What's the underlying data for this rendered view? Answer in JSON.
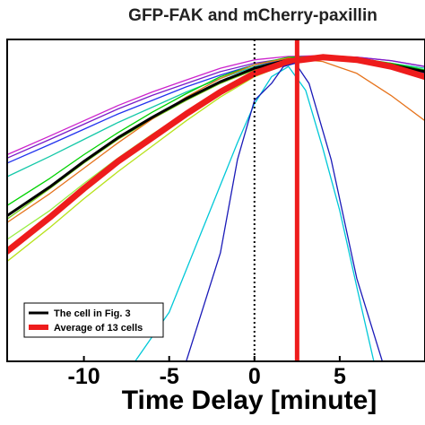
{
  "chart_data": {
    "type": "line",
    "title": "GFP-FAK and mCherry-paxillin",
    "xlabel": "Time Delay [minute]",
    "ylabel": "",
    "xlim": [
      -14.5,
      10
    ],
    "ylim": [
      -0.84,
      1.06
    ],
    "x_ticks": [
      -10,
      -5,
      0,
      5
    ],
    "x_tick_labels": [
      "-10",
      "-5",
      "0",
      "5"
    ],
    "grid": false,
    "legend_position": "bottom-left",
    "reference_lines": [
      {
        "x": 0,
        "style": "dotted",
        "color": "#000000"
      },
      {
        "x": 2.5,
        "style": "solid",
        "color": "#ee1c1c"
      }
    ],
    "series": [
      {
        "color": "#cc22cc",
        "width": 1.3,
        "x": [
          -14.5,
          -12,
          -10,
          -8,
          -6,
          -4,
          -2,
          0,
          2,
          4,
          6,
          8,
          10
        ],
        "y": [
          0.38,
          0.49,
          0.58,
          0.67,
          0.75,
          0.82,
          0.89,
          0.94,
          0.96,
          0.965,
          0.955,
          0.935,
          0.9
        ]
      },
      {
        "color": "#7a1cc8",
        "width": 1.3,
        "x": [
          -14.5,
          -12,
          -10,
          -8,
          -6,
          -4,
          -2,
          0,
          2,
          4,
          6,
          8,
          10
        ],
        "y": [
          0.36,
          0.47,
          0.56,
          0.65,
          0.73,
          0.8,
          0.87,
          0.92,
          0.95,
          0.96,
          0.955,
          0.935,
          0.9
        ]
      },
      {
        "color": "#2233ee",
        "width": 1.3,
        "x": [
          -14.5,
          -12,
          -10,
          -8,
          -6,
          -4,
          -2,
          0,
          2,
          4,
          6,
          8,
          10
        ],
        "y": [
          0.33,
          0.44,
          0.53,
          0.62,
          0.7,
          0.78,
          0.85,
          0.91,
          0.94,
          0.945,
          0.93,
          0.9,
          0.86
        ]
      },
      {
        "color": "#14c8a8",
        "width": 1.3,
        "x": [
          -14.5,
          -12,
          -10,
          -8,
          -6,
          -4,
          -2,
          0,
          2,
          4,
          6,
          8,
          10
        ],
        "y": [
          0.25,
          0.37,
          0.47,
          0.57,
          0.66,
          0.75,
          0.83,
          0.9,
          0.94,
          0.95,
          0.94,
          0.92,
          0.89
        ]
      },
      {
        "color": "#00d200",
        "width": 1.3,
        "x": [
          -14.5,
          -12,
          -10,
          -8,
          -6,
          -4,
          -2,
          0,
          2,
          4,
          6,
          8,
          10
        ],
        "y": [
          0.08,
          0.24,
          0.38,
          0.51,
          0.63,
          0.74,
          0.84,
          0.91,
          0.955,
          0.96,
          0.95,
          0.92,
          0.88
        ]
      },
      {
        "color": "#7ad21c",
        "width": 1.3,
        "x": [
          -14.5,
          -12,
          -10,
          -8,
          -6,
          -4,
          -2,
          0,
          2,
          4,
          6,
          8,
          10
        ],
        "y": [
          0.0,
          0.18,
          0.33,
          0.47,
          0.59,
          0.7,
          0.8,
          0.88,
          0.93,
          0.945,
          0.93,
          0.9,
          0.85
        ]
      },
      {
        "color": "#b8e21c",
        "width": 1.3,
        "x": [
          -14.5,
          -12,
          -10,
          -8,
          -6,
          -4,
          -2,
          0,
          2,
          4,
          6,
          8,
          10
        ],
        "y": [
          -0.25,
          -0.05,
          0.12,
          0.28,
          0.43,
          0.58,
          0.72,
          0.84,
          0.92,
          0.945,
          0.93,
          0.89,
          0.83
        ]
      },
      {
        "color": "#9aee44",
        "width": 1.3,
        "x": [
          -14.5,
          -12,
          -10,
          -8,
          -6,
          -4,
          -2,
          0,
          2,
          4,
          6,
          8,
          10
        ],
        "y": [
          -0.12,
          0.05,
          0.21,
          0.36,
          0.5,
          0.63,
          0.75,
          0.86,
          0.93,
          0.95,
          0.94,
          0.9,
          0.85
        ]
      },
      {
        "color": "#e6731c",
        "width": 1.3,
        "x": [
          -14.5,
          -12,
          -10,
          -8,
          -6,
          -4,
          -2,
          0,
          2,
          4,
          6,
          8,
          10
        ],
        "y": [
          -0.02,
          0.15,
          0.3,
          0.45,
          0.59,
          0.72,
          0.83,
          0.91,
          0.95,
          0.93,
          0.86,
          0.73,
          0.58
        ]
      },
      {
        "color": "#000000",
        "width": 3,
        "x": [
          -14.5,
          -12,
          -10,
          -8,
          -6,
          -4,
          -2,
          0,
          2,
          4,
          6,
          8,
          10
        ],
        "y": [
          0.02,
          0.19,
          0.34,
          0.48,
          0.6,
          0.71,
          0.81,
          0.89,
          0.94,
          0.955,
          0.94,
          0.91,
          0.87
        ]
      },
      {
        "color": "#ee1c1c",
        "width": 7,
        "x": [
          -14.5,
          -12,
          -10,
          -8,
          -6,
          -4,
          -2,
          0,
          2,
          4,
          6,
          8,
          10
        ],
        "y": [
          -0.19,
          0.01,
          0.18,
          0.34,
          0.48,
          0.62,
          0.75,
          0.86,
          0.93,
          0.955,
          0.94,
          0.9,
          0.84
        ]
      },
      {
        "color": "#00c8d8",
        "width": 1.3,
        "x": [
          -7,
          -5,
          -3,
          -1,
          0,
          1,
          2,
          3,
          4,
          5,
          6,
          7
        ],
        "y": [
          -0.84,
          -0.55,
          -0.05,
          0.45,
          0.68,
          0.84,
          0.9,
          0.76,
          0.42,
          0.05,
          -0.4,
          -0.84
        ]
      },
      {
        "color": "#1a1ab8",
        "width": 1.3,
        "x": [
          -4,
          -2,
          -1,
          0,
          1,
          1.7,
          2.4,
          3.2,
          4.5,
          6,
          7.5
        ],
        "y": [
          -0.84,
          -0.2,
          0.35,
          0.7,
          0.8,
          0.9,
          0.92,
          0.8,
          0.35,
          -0.35,
          -0.84
        ]
      }
    ],
    "legend": [
      {
        "label": "The cell in Fig. 3",
        "color": "#000000"
      },
      {
        "label": "Average of 13 cells",
        "color": "#ee1c1c"
      }
    ]
  }
}
